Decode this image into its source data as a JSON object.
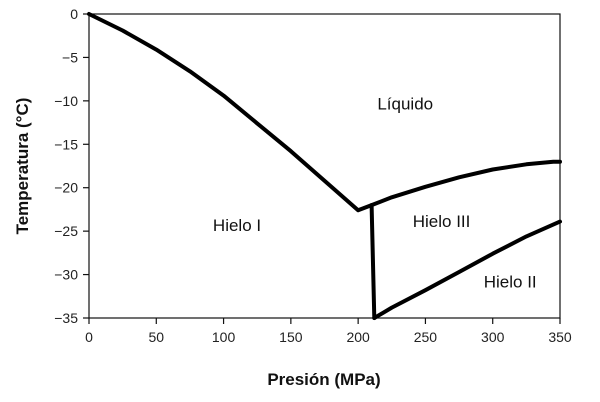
{
  "chart_data": {
    "type": "line",
    "title": "",
    "xlabel": "Presión (MPa)",
    "ylabel": "Temperatura (°C)",
    "xlim": [
      0,
      350
    ],
    "ylim": [
      -35,
      0
    ],
    "x_ticks": [
      0,
      50,
      100,
      150,
      200,
      250,
      300,
      350
    ],
    "y_ticks": [
      0,
      -5,
      -10,
      -15,
      -20,
      -25,
      -30,
      -35
    ],
    "grid": false,
    "legend": "none",
    "series": [
      {
        "x": [
          0,
          25,
          50,
          75,
          100,
          125,
          150,
          175,
          200,
          210
        ],
        "y": [
          0,
          -1.9,
          -4.1,
          -6.6,
          -9.4,
          -12.6,
          -15.8,
          -19.2,
          -22.6,
          -22
        ]
      },
      {
        "x": [
          210,
          212
        ],
        "y": [
          -22,
          -35
        ]
      },
      {
        "x": [
          210,
          225,
          250,
          275,
          300,
          325,
          345,
          350
        ],
        "y": [
          -22,
          -21.1,
          -19.9,
          -18.8,
          -17.9,
          -17.3,
          -17.0,
          -17.0
        ]
      },
      {
        "x": [
          212,
          225,
          250,
          275,
          300,
          325,
          350
        ],
        "y": [
          -35,
          -33.8,
          -31.8,
          -29.7,
          -27.6,
          -25.6,
          -23.9
        ]
      }
    ],
    "annotations": [
      {
        "text": "Líquido",
        "x": 235,
        "y": -11
      },
      {
        "text": "Hielo I",
        "x": 110,
        "y": -25
      },
      {
        "text": "Hielo III",
        "x": 262,
        "y": -24.5
      },
      {
        "text": "Hielo II",
        "x": 313,
        "y": -31.5
      }
    ]
  }
}
